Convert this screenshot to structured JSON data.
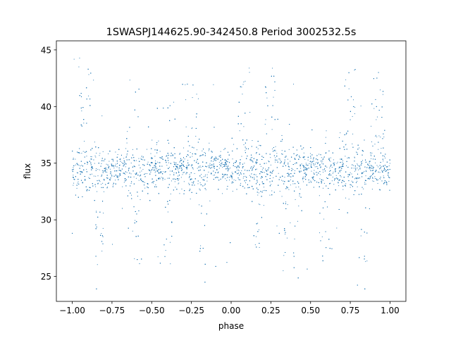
{
  "chart_data": {
    "type": "scatter",
    "title": "1SWASPJ144625.90-342450.8 Period 3002532.5s",
    "xlabel": "phase",
    "ylabel": "flux",
    "xlim": [
      -1.1,
      1.1
    ],
    "ylim": [
      22.8,
      45.8
    ],
    "x_ticks": [
      -1.0,
      -0.75,
      -0.5,
      -0.25,
      0.0,
      0.25,
      0.5,
      0.75,
      1.0
    ],
    "x_tick_labels": [
      "−1.00",
      "−0.75",
      "−0.50",
      "−0.25",
      "0.00",
      "0.25",
      "0.50",
      "0.75",
      "1.00"
    ],
    "y_ticks": [
      25,
      30,
      35,
      40,
      45
    ],
    "y_tick_labels": [
      "25",
      "30",
      "35",
      "40",
      "45"
    ],
    "grid": false,
    "legend": "none",
    "marker_color": "#1f77b4",
    "series": [
      {
        "phase_range": [
          -1.0,
          1.0
        ],
        "flux_median": 34.5,
        "flux_core_range": [
          31.0,
          38.0
        ],
        "flux_full_range": [
          23.9,
          44.6
        ],
        "dip_phases": [
          -0.83,
          -0.58,
          -0.4,
          -0.18,
          0.17,
          0.33,
          0.42,
          0.58,
          0.83
        ],
        "peak_phases": [
          -0.92,
          -0.62,
          -0.25,
          0.08,
          0.25,
          0.75,
          0.92
        ],
        "note": "dense light-curve scatter (folded twice)"
      }
    ]
  }
}
